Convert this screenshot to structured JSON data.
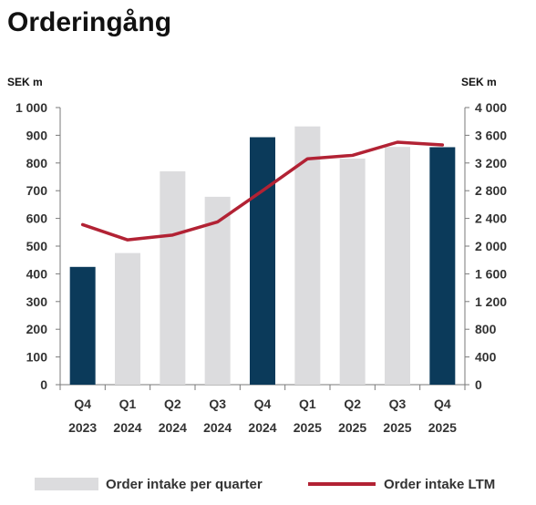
{
  "chart_data": {
    "type": "bar",
    "title": "Orderingång",
    "y_left_unit": "SEK m",
    "y_right_unit": "SEK m",
    "y_left_range": [
      0,
      1000
    ],
    "y_left_ticks": [
      "1 000",
      "900",
      "800",
      "700",
      "600",
      "500",
      "400",
      "300",
      "200",
      "100",
      "0"
    ],
    "y_right_range": [
      0,
      4000
    ],
    "y_right_ticks": [
      "4 000",
      "3 600",
      "3 200",
      "2 800",
      "2 400",
      "2 000",
      "1 600",
      "1 200",
      "800",
      "400",
      "0"
    ],
    "categories": [
      {
        "q": "Q4",
        "year": "2023"
      },
      {
        "q": "Q1",
        "year": "2024"
      },
      {
        "q": "Q2",
        "year": "2024"
      },
      {
        "q": "Q3",
        "year": "2024"
      },
      {
        "q": "Q4",
        "year": "2024"
      },
      {
        "q": "Q1",
        "year": "2025"
      },
      {
        "q": "Q2",
        "year": "2025"
      },
      {
        "q": "Q3",
        "year": "2025"
      },
      {
        "q": "Q4",
        "year": "2025"
      }
    ],
    "series": [
      {
        "name": "Order intake per quarter",
        "type": "bar",
        "axis": "left",
        "values": [
          425,
          475,
          770,
          678,
          893,
          932,
          816,
          858,
          857
        ],
        "highlight": [
          true,
          false,
          false,
          false,
          true,
          false,
          false,
          false,
          true
        ]
      },
      {
        "name": "Order intake LTM",
        "type": "line",
        "axis": "right",
        "values": [
          2310,
          2090,
          2160,
          2350,
          2800,
          3260,
          3310,
          3500,
          3460
        ]
      }
    ],
    "colors": {
      "bar": "#dcdcde",
      "bar_highlight": "#0b3a5a",
      "line": "#b22234",
      "axis": "#7a7a7a"
    },
    "legend_position": "bottom",
    "grid": false
  }
}
